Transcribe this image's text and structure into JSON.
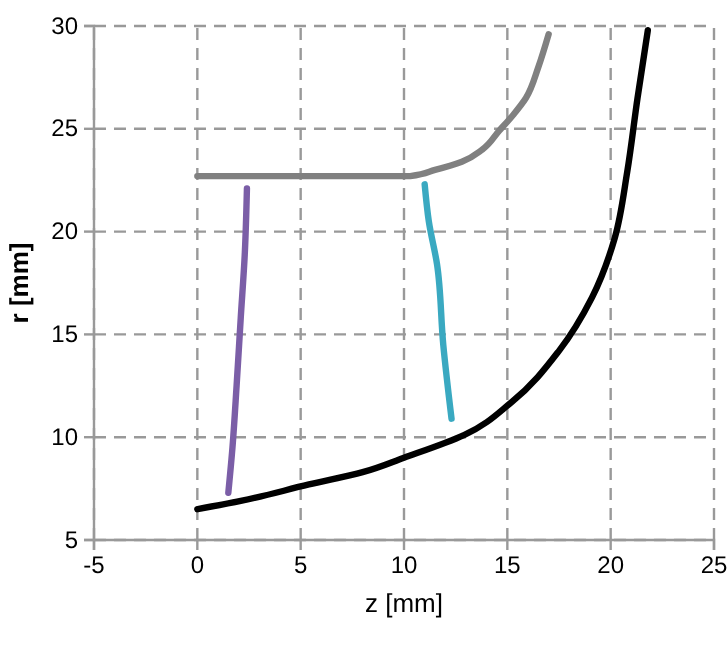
{
  "chart_data": {
    "type": "line",
    "xlabel": "z [mm]",
    "ylabel": "r [mm]",
    "xlim": [
      -5,
      25
    ],
    "ylim": [
      5,
      30
    ],
    "xticks": [
      -5,
      0,
      5,
      10,
      15,
      20,
      25
    ],
    "yticks": [
      5,
      10,
      15,
      20,
      25,
      30
    ],
    "grid": true,
    "marker": "none",
    "line_style": "solid",
    "series": [
      {
        "color": "#808080",
        "x": [
          0,
          2,
          4,
          6,
          8,
          10,
          10.3,
          11.5,
          12.8,
          13.8,
          14.6,
          15.3,
          15.9,
          16.5,
          17.0
        ],
        "values": [
          22.7,
          22.7,
          22.7,
          22.7,
          22.7,
          22.7,
          22.7,
          23.0,
          23.4,
          24.0,
          24.9,
          25.7,
          26.5,
          28.0,
          29.6
        ]
      },
      {
        "color": "#7b5ea7",
        "x": [
          2.4,
          2.3,
          2.1,
          1.9,
          1.7,
          1.5
        ],
        "values": [
          22.1,
          19.0,
          15.8,
          12.5,
          9.5,
          7.3
        ]
      },
      {
        "color": "#3aa9c1",
        "x": [
          11.0,
          11.2,
          11.6,
          11.9,
          12.3
        ],
        "values": [
          22.3,
          20.5,
          18.4,
          14.5,
          10.9
        ]
      },
      {
        "color": "#000000",
        "x": [
          0,
          2.1,
          5.4,
          8.0,
          10,
          12.9,
          15.2,
          17.5,
          19.1,
          20.2,
          20.8,
          21.3,
          21.8
        ],
        "values": [
          6.5,
          6.9,
          7.7,
          8.3,
          9.0,
          10.1,
          11.7,
          14.2,
          16.8,
          19.7,
          22.9,
          26.5,
          29.8
        ]
      }
    ]
  }
}
